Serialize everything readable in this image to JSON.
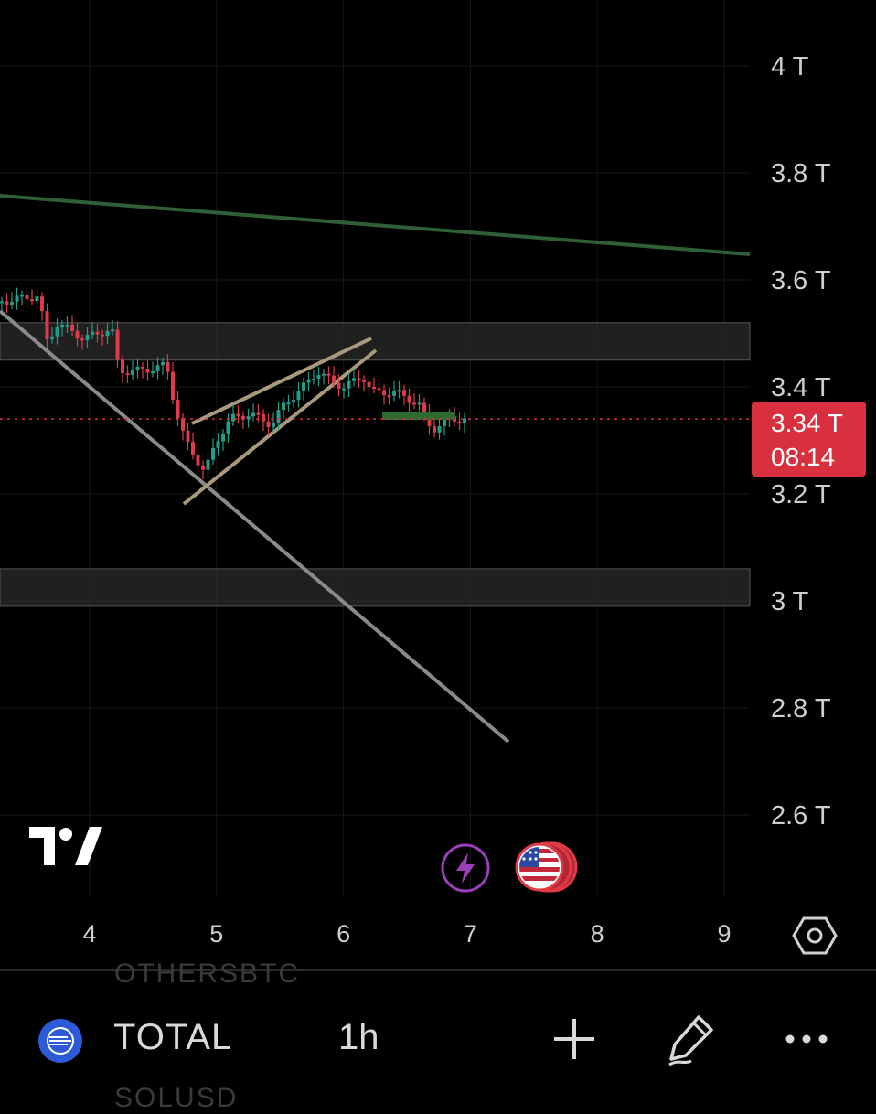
{
  "chart_data": {
    "type": "candlestick",
    "y_axis": {
      "ticks": [
        "4 T",
        "3.8 T",
        "3.6 T",
        "3.4 T",
        "3.2 T",
        "3 T",
        "2.8 T",
        "2.6 T"
      ]
    },
    "x_axis": {
      "ticks": [
        "4",
        "5",
        "6",
        "7",
        "8",
        "9"
      ]
    },
    "last_price": {
      "value": "3.34 T",
      "countdown": "08:14",
      "color": "#d9303f"
    },
    "zones": [
      {
        "name": "resistance-zone",
        "from": 3.45,
        "to": 3.52
      },
      {
        "name": "support-zone",
        "from": 2.99,
        "to": 3.06
      }
    ],
    "colors": {
      "up": "#1f9e89",
      "down": "#e0394a",
      "resistance_line": "#2f5f35",
      "trend_line": "#8a8a8a",
      "wedge_lines": "#a89a7a"
    }
  },
  "ui": {
    "symbol": "TOTAL",
    "timeframe": "1h",
    "ghost_above": "OTHERSBTC",
    "ghost_below": "SOLUSD",
    "icons": {
      "symbol": "symbol-icon",
      "add": "plus-icon",
      "draw": "pencil-icon",
      "more": "more-icon",
      "settings": "settings-hexagon-icon",
      "logo": "tradingview-logo",
      "flash": "lightning-icon",
      "flag": "us-flag-icon"
    }
  }
}
